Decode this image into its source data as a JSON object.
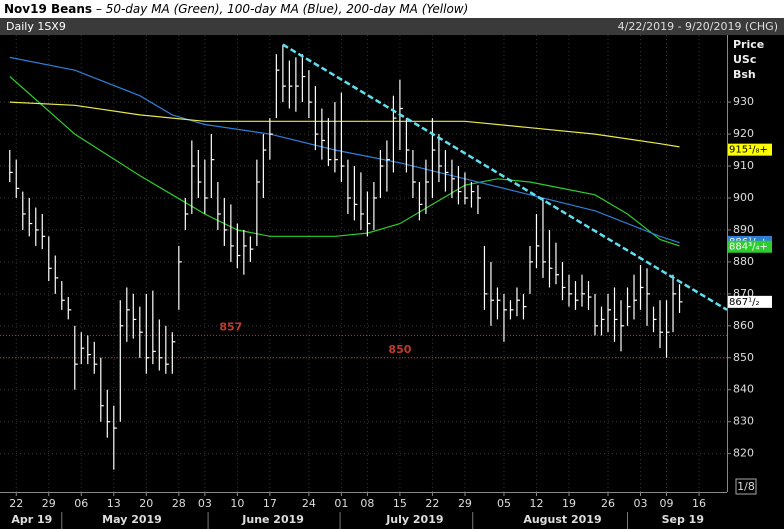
{
  "chart_data": {
    "type": "ohlc",
    "title": "Nov19 Beans",
    "subtitle": "– 50-day MA (Green), 100-day MA (Blue), 200-day MA (Yellow)",
    "frequency": "Daily 1SX9",
    "date_range": "4/22/2019 - 9/20/2019 (CHG)",
    "y_axis_label": [
      "Price",
      "USc",
      "Bsh"
    ],
    "fraction_label": "1/8",
    "xlim": [
      -1.5,
      110.3
    ],
    "ylim": [
      808,
      951
    ],
    "yticks": [
      820,
      830,
      840,
      850,
      860,
      870,
      880,
      890,
      900,
      910,
      920,
      930
    ],
    "xticks": [
      {
        "value": 1,
        "label": "22"
      },
      {
        "value": 6,
        "label": "29"
      },
      {
        "value": 11,
        "label": "06"
      },
      {
        "value": 16,
        "label": "13"
      },
      {
        "value": 21,
        "label": "20"
      },
      {
        "value": 26,
        "label": "28"
      },
      {
        "value": 30,
        "label": "03"
      },
      {
        "value": 35,
        "label": "10"
      },
      {
        "value": 40,
        "label": "17"
      },
      {
        "value": 46,
        "label": "24"
      },
      {
        "value": 51,
        "label": "01"
      },
      {
        "value": 55,
        "label": "08"
      },
      {
        "value": 60,
        "label": "15"
      },
      {
        "value": 65,
        "label": "22"
      },
      {
        "value": 70,
        "label": "29"
      },
      {
        "value": 76,
        "label": "05"
      },
      {
        "value": 81,
        "label": "12"
      },
      {
        "value": 86,
        "label": "19"
      },
      {
        "value": 92,
        "label": "26"
      },
      {
        "value": 97,
        "label": "03"
      },
      {
        "value": 101,
        "label": "09"
      },
      {
        "value": 106,
        "label": "16"
      }
    ],
    "months": [
      {
        "value": 3.4,
        "label": "Apr 19"
      },
      {
        "value": 18.8,
        "label": "May 2019"
      },
      {
        "value": 40.5,
        "label": "June 2019"
      },
      {
        "value": 62.3,
        "label": "July 2019"
      },
      {
        "value": 85,
        "label": "August 2019"
      },
      {
        "value": 103.5,
        "label": "Sep 19"
      }
    ],
    "month_breaks": [
      8,
      30.5,
      50.8,
      71.2,
      95
    ],
    "grid": true,
    "bar_color": "#ffffff",
    "x": [
      0,
      1,
      2,
      3,
      4,
      5,
      6,
      7,
      8,
      9,
      10,
      11,
      12,
      13,
      14,
      15,
      16,
      17,
      18,
      19,
      20,
      21,
      22,
      23,
      24,
      25,
      26,
      27,
      28,
      29,
      30,
      31,
      32,
      33,
      34,
      35,
      36,
      37,
      38,
      39,
      40,
      41,
      42,
      43,
      44,
      45,
      46,
      47,
      48,
      49,
      50,
      51,
      52,
      53,
      54,
      55,
      56,
      57,
      58,
      59,
      60,
      61,
      62,
      63,
      64,
      65,
      66,
      67,
      68,
      69,
      70,
      71,
      72,
      73,
      74,
      75,
      76,
      77,
      78,
      79,
      80,
      81,
      82,
      83,
      84,
      85,
      86,
      87,
      88,
      89,
      90,
      91,
      92,
      93,
      94,
      95,
      96,
      97,
      98,
      99,
      100,
      101,
      102,
      103
    ],
    "high": [
      915,
      912,
      902,
      900,
      897,
      895,
      888,
      882,
      874,
      869,
      860,
      858,
      857,
      855,
      850,
      840,
      835,
      868,
      872,
      870,
      866,
      870,
      871,
      862,
      860,
      858,
      885,
      900,
      918,
      915,
      912,
      920,
      905,
      900,
      898,
      892,
      890,
      888,
      912,
      920,
      925,
      945,
      948,
      943,
      944,
      945,
      940,
      935,
      928,
      925,
      930,
      933,
      912,
      910,
      908,
      902,
      905,
      915,
      918,
      932,
      937,
      925,
      915,
      905,
      912,
      925,
      920,
      915,
      912,
      910,
      908,
      905,
      904,
      885,
      880,
      872,
      870,
      868,
      872,
      870,
      885,
      895,
      900,
      890,
      886,
      880,
      876,
      874,
      876,
      874,
      870,
      866,
      870,
      872,
      868,
      872,
      876,
      879,
      878,
      866,
      868,
      868,
      876,
      873
    ],
    "low": [
      905,
      900,
      890,
      888,
      885,
      884,
      874,
      870,
      865,
      862,
      840,
      848,
      848,
      845,
      830,
      825,
      815,
      830,
      855,
      856,
      850,
      845,
      848,
      846,
      845,
      845,
      865,
      890,
      895,
      900,
      895,
      900,
      890,
      885,
      880,
      878,
      876,
      880,
      885,
      900,
      912,
      925,
      930,
      928,
      927,
      930,
      925,
      915,
      912,
      910,
      908,
      905,
      895,
      893,
      890,
      888,
      890,
      900,
      902,
      908,
      915,
      908,
      900,
      893,
      895,
      900,
      905,
      902,
      900,
      898,
      898,
      897,
      895,
      865,
      860,
      862,
      855,
      862,
      863,
      862,
      870,
      878,
      875,
      872,
      873,
      868,
      866,
      865,
      866,
      865,
      857,
      857,
      858,
      855,
      852,
      860,
      862,
      865,
      860,
      858,
      853,
      850,
      858,
      864
    ],
    "close": [
      908,
      903,
      895,
      892,
      890,
      888,
      878,
      875,
      868,
      865,
      848,
      853,
      851,
      848,
      835,
      830,
      828,
      860,
      865,
      862,
      858,
      850,
      852,
      850,
      848,
      855,
      880,
      895,
      910,
      905,
      900,
      912,
      895,
      890,
      885,
      882,
      885,
      884,
      905,
      915,
      920,
      940,
      935,
      935,
      935,
      938,
      930,
      920,
      918,
      912,
      912,
      910,
      900,
      898,
      895,
      892,
      900,
      910,
      912,
      925,
      928,
      915,
      905,
      898,
      905,
      915,
      910,
      908,
      906,
      902,
      900,
      902,
      900,
      870,
      868,
      868,
      865,
      865,
      868,
      866,
      880,
      885,
      880,
      878,
      876,
      872,
      870,
      868,
      870,
      869,
      860,
      862,
      865,
      862,
      860,
      866,
      868,
      872,
      870,
      862,
      858,
      858,
      870,
      867.5
    ],
    "series": [
      {
        "name": "50-day MA",
        "color": "#2ecc2e",
        "x": [
          0,
          10,
          20,
          25,
          30,
          35,
          40,
          50,
          55,
          60,
          65,
          70,
          75,
          80,
          85,
          90,
          95,
          100,
          103
        ],
        "values": [
          938,
          920,
          907,
          901,
          895,
          890,
          888,
          888,
          889,
          892,
          898,
          904,
          906,
          905,
          903,
          901,
          895,
          887,
          885
        ]
      },
      {
        "name": "100-day MA",
        "color": "#2f7fd8",
        "x": [
          0,
          10,
          20,
          25,
          30,
          40,
          50,
          60,
          70,
          80,
          90,
          100,
          103
        ],
        "values": [
          944,
          940,
          932,
          926,
          923,
          920,
          915,
          911,
          906,
          901,
          896,
          888,
          886
        ]
      },
      {
        "name": "200-day MA",
        "color": "#e8e84a",
        "x": [
          0,
          10,
          20,
          30,
          40,
          50,
          60,
          70,
          80,
          90,
          100,
          103
        ],
        "values": [
          930,
          929,
          926,
          924,
          924,
          924,
          924,
          924,
          922,
          920,
          917,
          916
        ]
      }
    ],
    "trendline": {
      "color": "#5ee0f0",
      "x": [
        42,
        110.3
      ],
      "values": [
        948,
        865
      ]
    },
    "levels": [
      {
        "value": 857,
        "label": "857",
        "at": 34
      },
      {
        "value": 850,
        "label": "850",
        "at": 60
      }
    ],
    "level_color": "#c0392b",
    "price_tags": [
      {
        "value": 915.125,
        "label": "915¹/₈+",
        "color": "#ffff00",
        "text_color": "#000000"
      },
      {
        "value": 886.25,
        "label": "886¹/₄+",
        "color": "#2f7fd8",
        "text_color": "#ffffff"
      },
      {
        "value": 884.75,
        "label": "884³/₄+",
        "color": "#2ecc2e",
        "text_color": "#ffffff"
      },
      {
        "value": 867.5,
        "label": "867¹/₂",
        "color": "#ffffff",
        "text_color": "#000000"
      }
    ]
  }
}
